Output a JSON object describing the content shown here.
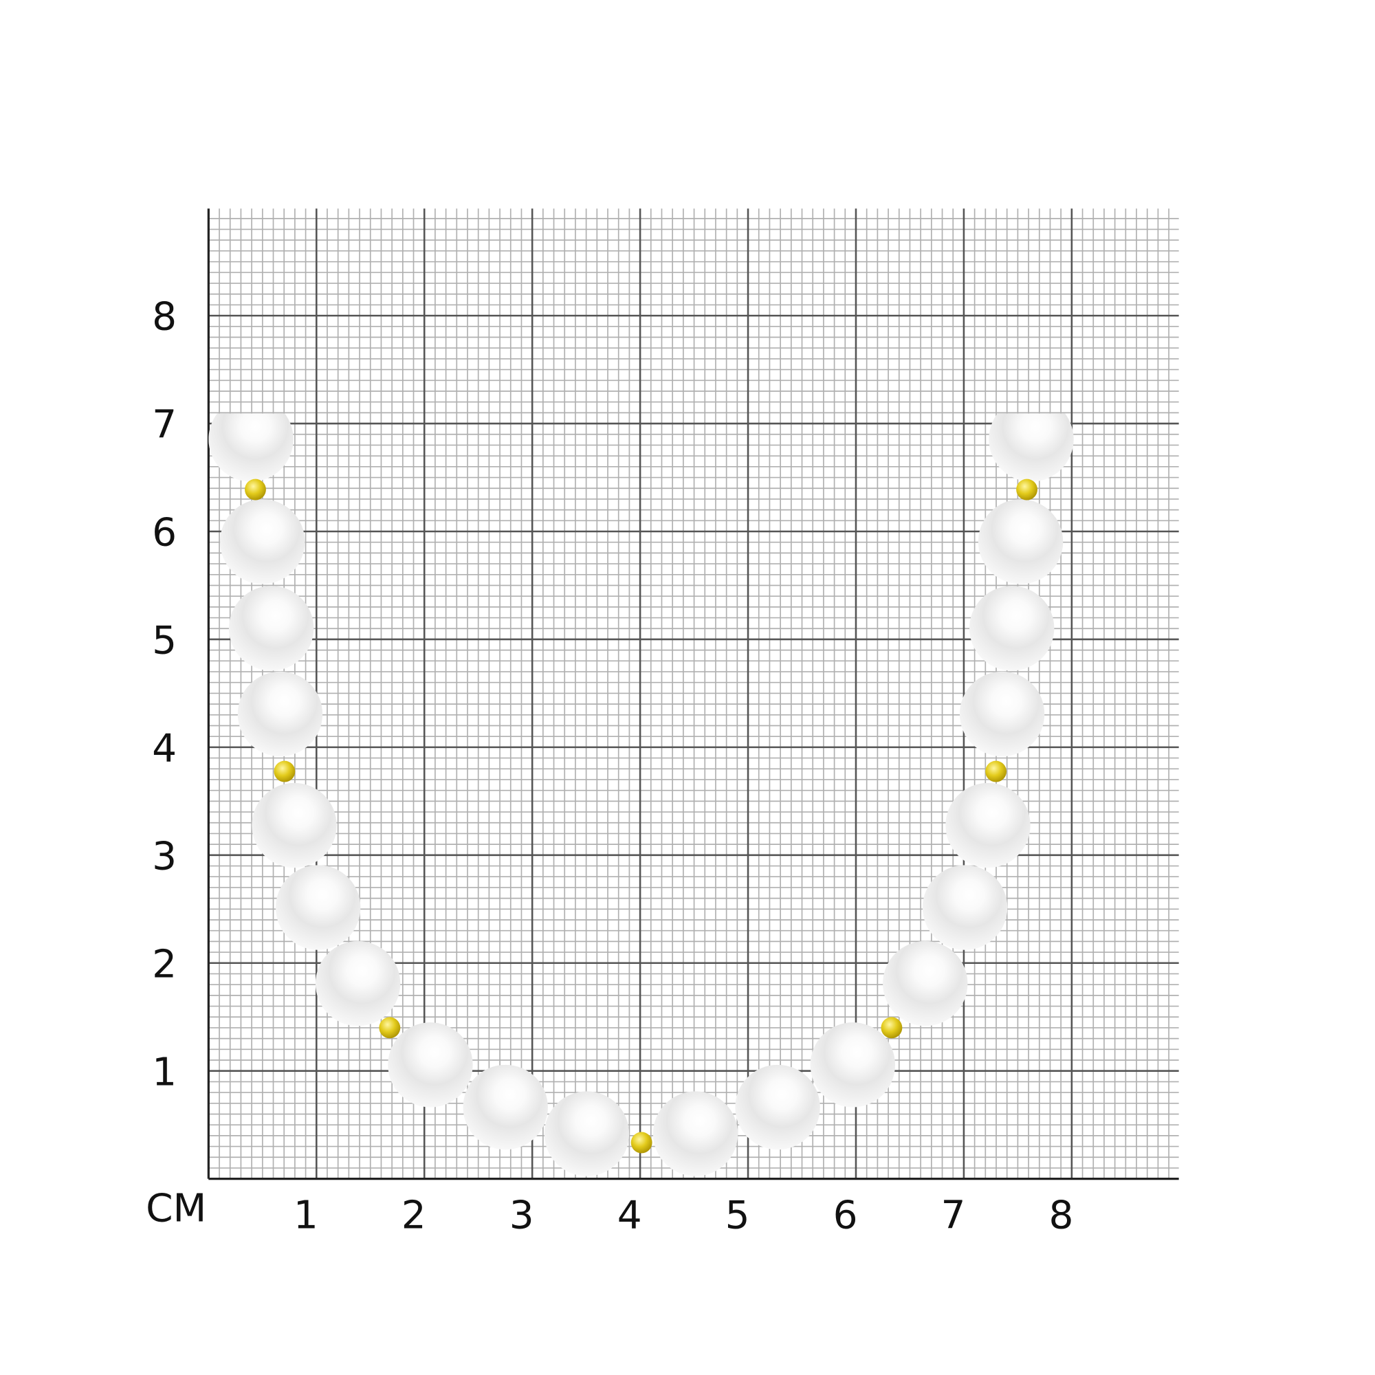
{
  "unit_label": "СМ",
  "x_ticks": [
    "1",
    "2",
    "3",
    "4",
    "5",
    "6",
    "7",
    "8"
  ],
  "y_ticks": [
    "1",
    "2",
    "3",
    "4",
    "5",
    "6",
    "7",
    "8"
  ],
  "colors": {
    "major_grid": "#555555",
    "minor_grid": "#b0b0b0",
    "pearl": "#f2f2f2",
    "bead": "#d8c21a"
  }
}
